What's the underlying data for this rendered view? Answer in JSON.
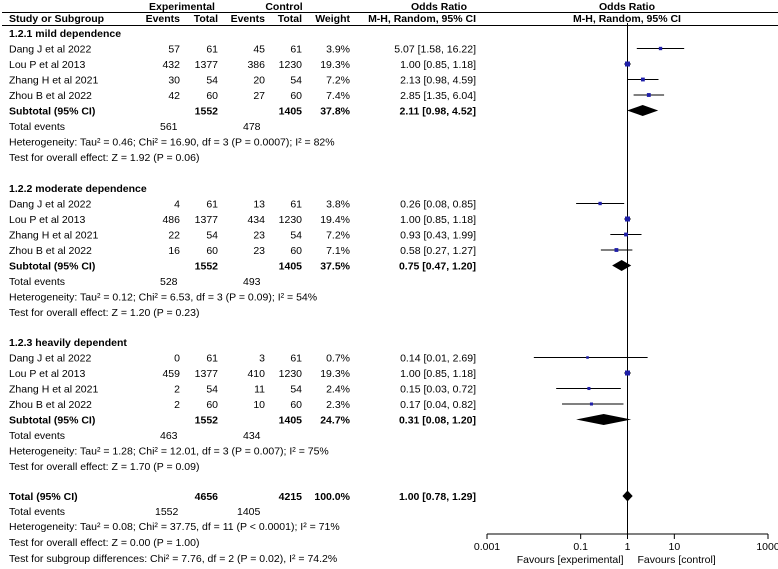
{
  "header": {
    "group1": "Experimental",
    "group2": "Control",
    "or_top": "Odds Ratio",
    "plot_top": "Odds Ratio",
    "study": "Study or Subgroup",
    "events1": "Events",
    "total1": "Total",
    "events2": "Events",
    "total2": "Total",
    "weight": "Weight",
    "method": "M-H, Random, 95% CI",
    "plot_method": "M-H, Random, 95% CI"
  },
  "chart_data": {
    "type": "forest",
    "scale": "log",
    "xlim": [
      0.001,
      1000
    ],
    "xticks": [
      "0.001",
      "0.1",
      "1",
      "10",
      "1000"
    ],
    "xlabel_left": "Favours [experimental]",
    "xlabel_right": "Favours [control]",
    "subgroups": [
      {
        "title": "1.2.1 mild dependence",
        "studies": [
          {
            "name": "Dang J et al 2022",
            "e1": "57",
            "n1": "61",
            "e2": "45",
            "n2": "61",
            "weight": "3.9%",
            "ci_text": "5.07 [1.58, 16.22]",
            "or": 5.07,
            "lo": 1.58,
            "hi": 16.22
          },
          {
            "name": "Lou P et al 2013",
            "e1": "432",
            "n1": "1377",
            "e2": "386",
            "n2": "1230",
            "weight": "19.3%",
            "ci_text": "1.00 [0.85, 1.18]",
            "or": 1.0,
            "lo": 0.85,
            "hi": 1.18
          },
          {
            "name": "Zhang H et al 2021",
            "e1": "30",
            "n1": "54",
            "e2": "20",
            "n2": "54",
            "weight": "7.2%",
            "ci_text": "2.13 [0.98, 4.59]",
            "or": 2.13,
            "lo": 0.98,
            "hi": 4.59
          },
          {
            "name": "Zhou B et al 2022",
            "e1": "42",
            "n1": "60",
            "e2": "27",
            "n2": "60",
            "weight": "7.4%",
            "ci_text": "2.85 [1.35, 6.04]",
            "or": 2.85,
            "lo": 1.35,
            "hi": 6.04
          }
        ],
        "subtotal": {
          "label": "Subtotal (95% CI)",
          "n1": "1552",
          "n2": "1405",
          "weight": "37.8%",
          "ci_text": "2.11 [0.98, 4.52]",
          "or": 2.11,
          "lo": 0.98,
          "hi": 4.52
        },
        "total_events": {
          "label": "Total events",
          "e1": "561",
          "e2": "478"
        },
        "heterogeneity": "Heterogeneity: Tau² = 0.46; Chi² = 16.90, df = 3 (P = 0.0007); I² = 82%",
        "overall_effect": "Test for overall effect: Z = 1.92 (P = 0.06)"
      },
      {
        "title": "1.2.2 moderate dependence",
        "studies": [
          {
            "name": "Dang J et al 2022",
            "e1": "4",
            "n1": "61",
            "e2": "13",
            "n2": "61",
            "weight": "3.8%",
            "ci_text": "0.26 [0.08, 0.85]",
            "or": 0.26,
            "lo": 0.08,
            "hi": 0.85
          },
          {
            "name": "Lou P et al 2013",
            "e1": "486",
            "n1": "1377",
            "e2": "434",
            "n2": "1230",
            "weight": "19.4%",
            "ci_text": "1.00 [0.85, 1.18]",
            "or": 1.0,
            "lo": 0.85,
            "hi": 1.18
          },
          {
            "name": "Zhang H et al 2021",
            "e1": "22",
            "n1": "54",
            "e2": "23",
            "n2": "54",
            "weight": "7.2%",
            "ci_text": "0.93 [0.43, 1.99]",
            "or": 0.93,
            "lo": 0.43,
            "hi": 1.99
          },
          {
            "name": "Zhou B et al 2022",
            "e1": "16",
            "n1": "60",
            "e2": "23",
            "n2": "60",
            "weight": "7.1%",
            "ci_text": "0.58 [0.27, 1.27]",
            "or": 0.58,
            "lo": 0.27,
            "hi": 1.27
          }
        ],
        "subtotal": {
          "label": "Subtotal (95% CI)",
          "n1": "1552",
          "n2": "1405",
          "weight": "37.5%",
          "ci_text": "0.75 [0.47, 1.20]",
          "or": 0.75,
          "lo": 0.47,
          "hi": 1.2
        },
        "total_events": {
          "label": "Total events",
          "e1": "528",
          "e2": "493"
        },
        "heterogeneity": "Heterogeneity: Tau² = 0.12; Chi² = 6.53, df = 3 (P = 0.09); I² = 54%",
        "overall_effect": "Test for overall effect: Z = 1.20 (P = 0.23)"
      },
      {
        "title": "1.2.3 heavily dependent",
        "studies": [
          {
            "name": "Dang J et al 2022",
            "e1": "0",
            "n1": "61",
            "e2": "3",
            "n2": "61",
            "weight": "0.7%",
            "ci_text": "0.14 [0.01, 2.69]",
            "or": 0.14,
            "lo": 0.01,
            "hi": 2.69
          },
          {
            "name": "Lou P et al 2013",
            "e1": "459",
            "n1": "1377",
            "e2": "410",
            "n2": "1230",
            "weight": "19.3%",
            "ci_text": "1.00 [0.85, 1.18]",
            "or": 1.0,
            "lo": 0.85,
            "hi": 1.18
          },
          {
            "name": "Zhang H et al 2021",
            "e1": "2",
            "n1": "54",
            "e2": "11",
            "n2": "54",
            "weight": "2.4%",
            "ci_text": "0.15 [0.03, 0.72]",
            "or": 0.15,
            "lo": 0.03,
            "hi": 0.72
          },
          {
            "name": "Zhou B et al 2022",
            "e1": "2",
            "n1": "60",
            "e2": "10",
            "n2": "60",
            "weight": "2.3%",
            "ci_text": "0.17 [0.04, 0.82]",
            "or": 0.17,
            "lo": 0.04,
            "hi": 0.82
          }
        ],
        "subtotal": {
          "label": "Subtotal (95% CI)",
          "n1": "1552",
          "n2": "1405",
          "weight": "24.7%",
          "ci_text": "0.31 [0.08, 1.20]",
          "or": 0.31,
          "lo": 0.08,
          "hi": 1.2
        },
        "total_events": {
          "label": "Total events",
          "e1": "463",
          "e2": "434"
        },
        "heterogeneity": "Heterogeneity: Tau² = 1.28; Chi² = 12.01, df = 3 (P = 0.007); I² = 75%",
        "overall_effect": "Test for overall effect: Z = 1.70 (P = 0.09)"
      }
    ],
    "overall": {
      "label": "Total (95% CI)",
      "n1": "4656",
      "n2": "4215",
      "weight": "100.0%",
      "ci_text": "1.00 [0.78, 1.29]",
      "or": 1.0,
      "lo": 0.78,
      "hi": 1.29,
      "total_events": {
        "label": "Total events",
        "e1": "1552",
        "e2": "1405"
      },
      "heterogeneity": "Heterogeneity: Tau² = 0.08; Chi² = 37.75, df = 11 (P < 0.0001); I² = 71%",
      "overall_effect": "Test for overall effect: Z = 0.00 (P = 1.00)",
      "subgroup_diff": "Test for subgroup differences: Chi² = 7.76, df = 2 (P = 0.02), I² = 74.2%"
    },
    "colors": {
      "study_marker": "#1f1fa8",
      "summary_diamond": "#000000",
      "lines": "#000000"
    }
  }
}
